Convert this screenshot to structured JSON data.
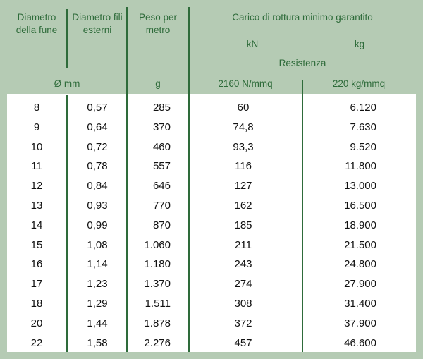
{
  "header": {
    "col1": "Diametro della fune",
    "col2": "Diametro fili esterni",
    "col3": "Peso per metro",
    "group": "Carico di rottura minimo garantito",
    "kn": "kN",
    "kg": "kg",
    "resistenza": "Resistenza",
    "unit_mm": "Ø mm",
    "unit_g": "g",
    "res1": "2160 N/mmq",
    "res2": "220 kg/mmq"
  },
  "rows": [
    [
      "8",
      "0,57",
      "285",
      "60",
      "6.120"
    ],
    [
      "9",
      "0,64",
      "370",
      "74,8",
      "7.630"
    ],
    [
      "10",
      "0,72",
      "460",
      "93,3",
      "9.520"
    ],
    [
      "11",
      "0,78",
      "557",
      "116",
      "11.800"
    ],
    [
      "12",
      "0,84",
      "646",
      "127",
      "13.000"
    ],
    [
      "13",
      "0,93",
      "770",
      "162",
      "16.500"
    ],
    [
      "14",
      "0,99",
      "870",
      "185",
      "18.900"
    ],
    [
      "15",
      "1,08",
      "1.060",
      "211",
      "21.500"
    ],
    [
      "16",
      "1,14",
      "1.180",
      "243",
      "24.800"
    ],
    [
      "17",
      "1,23",
      "1.370",
      "274",
      "27.900"
    ],
    [
      "18",
      "1,29",
      "1.511",
      "308",
      "31.400"
    ],
    [
      "20",
      "1,44",
      "1.878",
      "372",
      "37.900"
    ],
    [
      "22",
      "1,58",
      "2.276",
      "457",
      "46.600"
    ]
  ],
  "colors": {
    "header_bg": "#b5cbb4",
    "header_text": "#2e6b3a"
  }
}
